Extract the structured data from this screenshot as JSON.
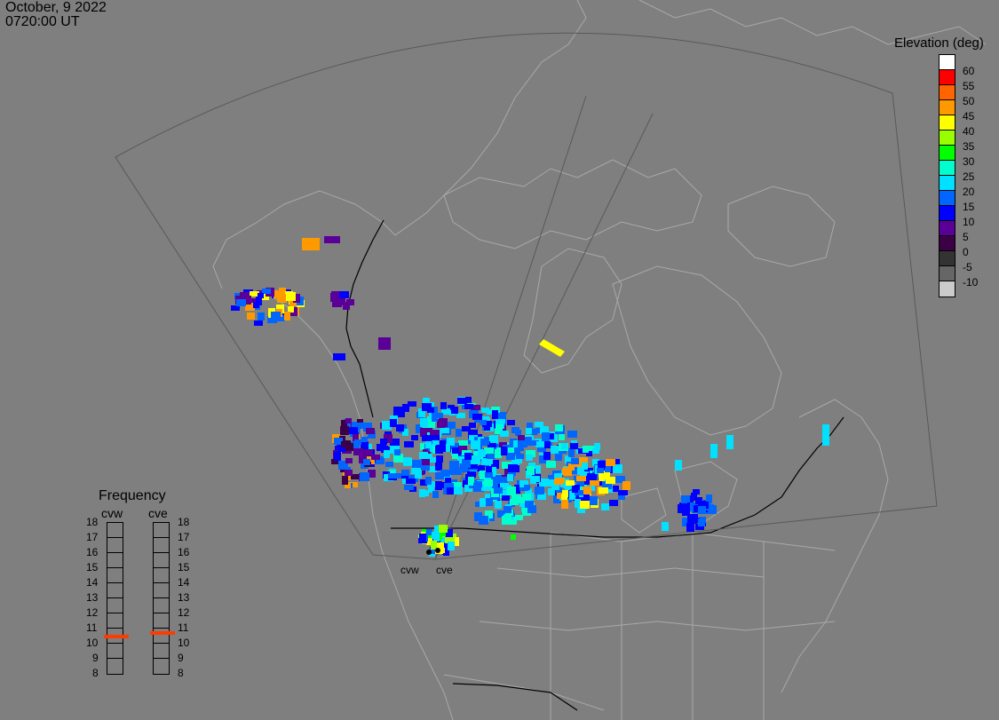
{
  "header": {
    "date": "October, 9 2022",
    "time": "0720:00 UT"
  },
  "colorbar": {
    "title": "Elevation (deg)",
    "levels": [
      {
        "label": "60",
        "color": "#ffffff"
      },
      {
        "label": "55",
        "color": "#ff0000"
      },
      {
        "label": "50",
        "color": "#ff6400"
      },
      {
        "label": "45",
        "color": "#ff9900"
      },
      {
        "label": "40",
        "color": "#ffff00"
      },
      {
        "label": "35",
        "color": "#99ff00"
      },
      {
        "label": "30",
        "color": "#00ff00"
      },
      {
        "label": "25",
        "color": "#00ffcc"
      },
      {
        "label": "20",
        "color": "#00e0ff"
      },
      {
        "label": "15",
        "color": "#0066ff"
      },
      {
        "label": "10",
        "color": "#0000ff"
      },
      {
        "label": "5",
        "color": "#5a0099"
      },
      {
        "label": "0",
        "color": "#3c0046"
      },
      {
        "label": "-5",
        "color": "#333333"
      },
      {
        "label": "-10",
        "color": "#666666"
      },
      {
        "label": "",
        "color": "#cccccc"
      }
    ]
  },
  "frequency": {
    "title": "Frequency",
    "ticks": [
      "18",
      "17",
      "16",
      "15",
      "14",
      "13",
      "12",
      "11",
      "10",
      "9",
      "8"
    ],
    "radars": [
      {
        "name": "cvw",
        "value_mhz": 10.5
      },
      {
        "name": "cve",
        "value_mhz": 10.7
      }
    ]
  },
  "sites": [
    {
      "name": "cvw"
    },
    {
      "name": "cve"
    }
  ]
}
